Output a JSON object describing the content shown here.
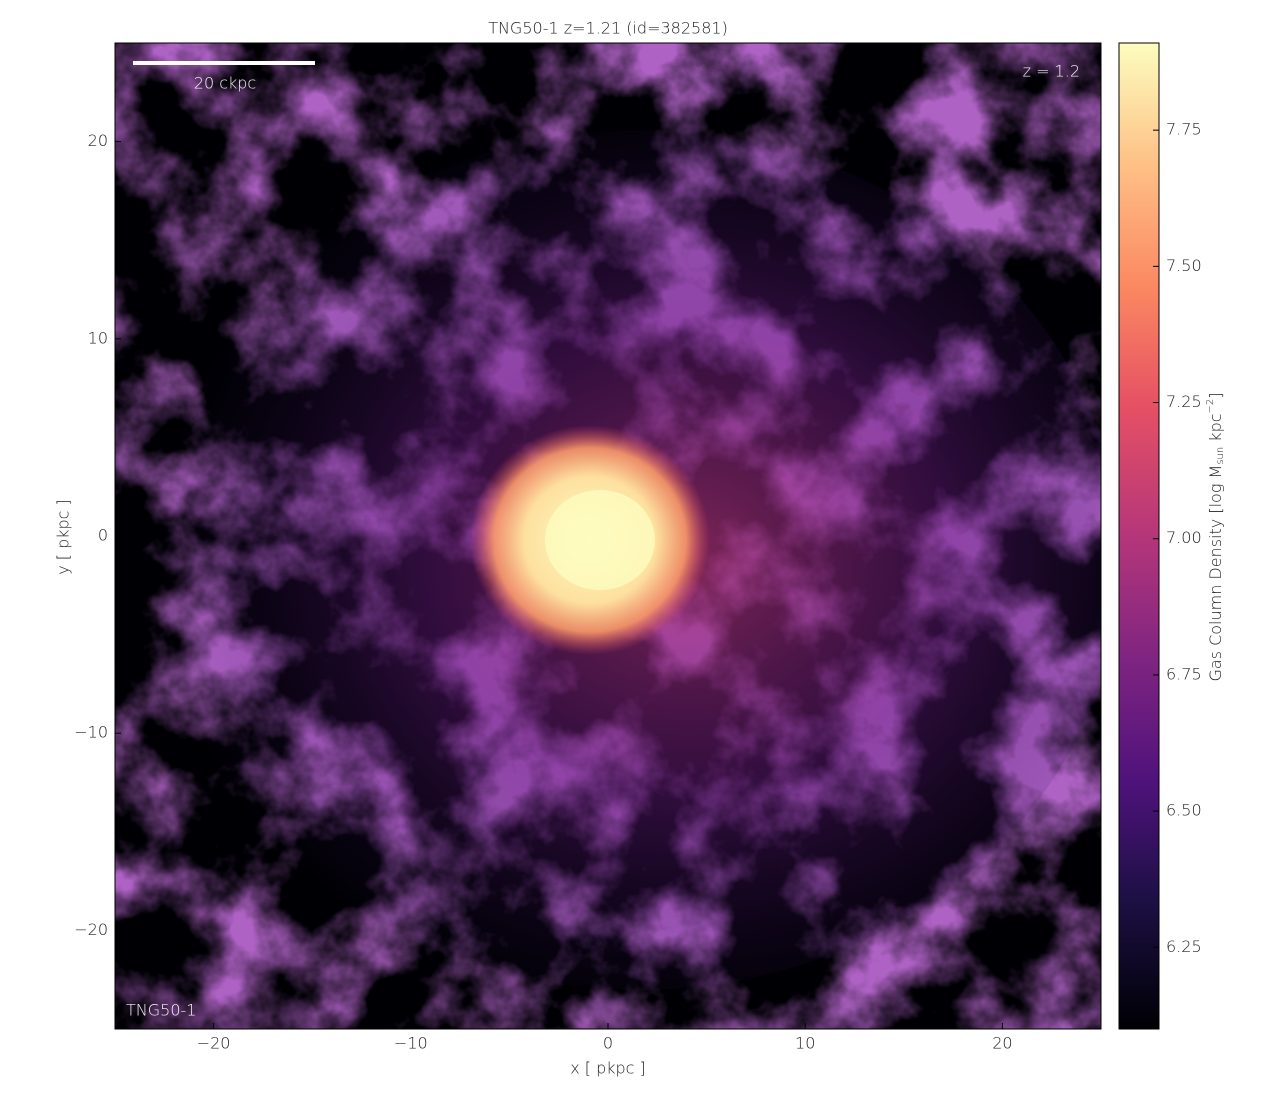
{
  "chart_data": {
    "type": "image",
    "title": "TNG50-1 z=1.21 (id=382581)",
    "xlabel": "x [ pkpc ]",
    "ylabel": "y [ pkpc ]",
    "xlim": [
      -25,
      25
    ],
    "ylim": [
      -25,
      25
    ],
    "xticks": [
      {
        "value": -20,
        "label": "−20"
      },
      {
        "value": -10,
        "label": "−10"
      },
      0,
      10,
      20
    ],
    "yticks": [
      {
        "value": -20,
        "label": "−20"
      },
      {
        "value": -10,
        "label": "−10"
      },
      0,
      10,
      20
    ],
    "colorbar": {
      "label": [
        "Gas Column Density [log M",
        "sun",
        " kpc",
        "−2",
        "]"
      ],
      "lim": [
        6.1,
        7.91
      ],
      "ticks": [
        6.25,
        {
          "value": 6.5,
          "label": "6.50"
        },
        6.75,
        {
          "value": 7,
          "label": "7.00"
        },
        7.25,
        {
          "value": 7.5,
          "label": "7.50"
        },
        7.75
      ]
    },
    "annotations": {
      "scale_bar": "20 ckpc",
      "redshift": "z = 1.2",
      "simulation": "TNG50-1"
    }
  }
}
